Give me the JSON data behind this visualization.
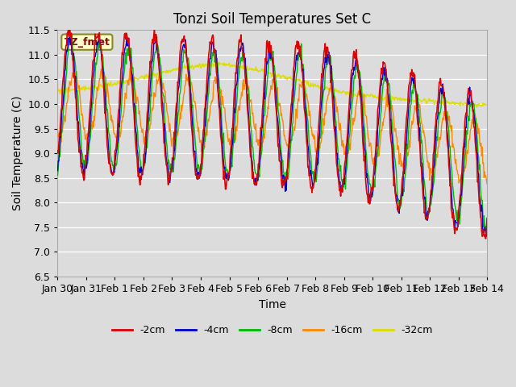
{
  "title": "Tonzi Soil Temperatures Set C",
  "xlabel": "Time",
  "ylabel": "Soil Temperature (C)",
  "ylim": [
    6.5,
    11.5
  ],
  "annotation": "TZ_fmet",
  "legend_labels": [
    "-2cm",
    "-4cm",
    "-8cm",
    "-16cm",
    "-32cm"
  ],
  "legend_colors": [
    "#dd0000",
    "#0000cc",
    "#00bb00",
    "#ff8800",
    "#dddd00"
  ],
  "bg_color": "#dcdcdc",
  "grid_color": "#ffffff",
  "tick_dates": [
    "Jan 30",
    "Jan 31",
    "Feb 1",
    "Feb 2",
    "Feb 3",
    "Feb 4",
    "Feb 5",
    "Feb 6",
    "Feb 7",
    "Feb 8",
    "Feb 9",
    "Feb 10",
    "Feb 11",
    "Feb 12",
    "Feb 13",
    "Feb 14"
  ]
}
